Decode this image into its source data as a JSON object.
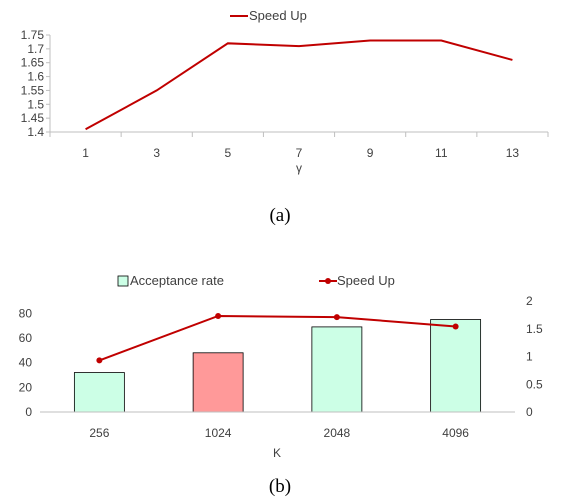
{
  "chart_data": [
    {
      "type": "line",
      "x": [
        "1",
        "3",
        "5",
        "7",
        "9",
        "11",
        "13"
      ],
      "xlabel": "γ",
      "ylim": [
        1.4,
        1.75
      ],
      "yticks": [
        "1.4",
        "1.45",
        "1.5",
        "1.55",
        "1.6",
        "1.65",
        "1.7",
        "1.75"
      ],
      "series": [
        {
          "name": "Speed Up",
          "values": [
            1.41,
            1.55,
            1.72,
            1.71,
            1.73,
            1.73,
            1.66
          ],
          "color": "#C00000"
        }
      ],
      "legend": "top-center",
      "grid": false,
      "caption": "(a)"
    },
    {
      "type": "bar",
      "categories": [
        "256",
        "1024",
        "2048",
        "4096"
      ],
      "xlabel": "K",
      "series": [
        {
          "name": "Acceptance rate",
          "type": "bar",
          "axis": "left",
          "values": [
            32,
            48,
            69,
            75
          ],
          "color": "#CCFFE6",
          "highlight_color": "#FF9999",
          "highlight_index": 1
        },
        {
          "name": "Speed Up",
          "type": "line",
          "axis": "right",
          "values": [
            0.93,
            1.73,
            1.71,
            1.54
          ],
          "color": "#C00000"
        }
      ],
      "y_left": {
        "ylim": [
          0,
          90
        ],
        "ticks": [
          "0",
          "20",
          "40",
          "60",
          "80"
        ]
      },
      "y_right": {
        "ylim": [
          0,
          2
        ],
        "ticks": [
          "0",
          "0.5",
          "1",
          "1.5",
          "2"
        ]
      },
      "legend": "top-center",
      "grid": false,
      "caption": "(b)"
    }
  ]
}
